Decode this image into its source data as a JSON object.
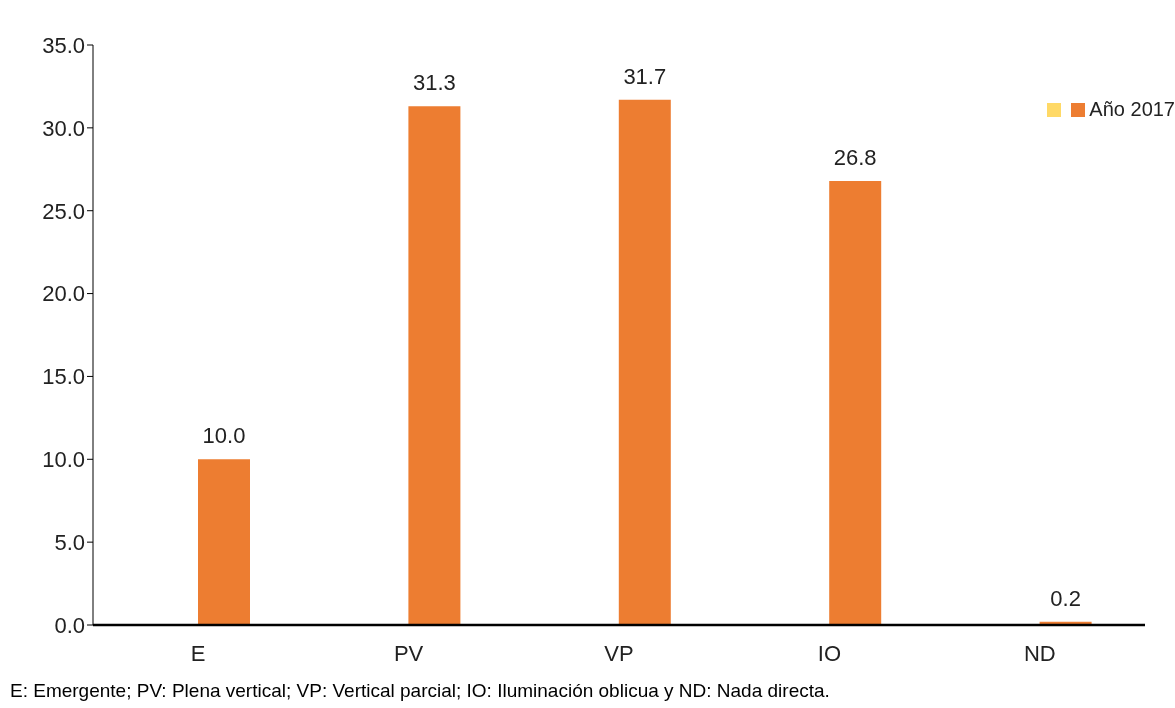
{
  "chart_data": {
    "type": "bar",
    "categories": [
      "E",
      "PV",
      "VP",
      "IO",
      "ND"
    ],
    "series": [
      {
        "color": "#ffd966",
        "values": [
          null,
          null,
          null,
          null,
          null
        ]
      },
      {
        "name": "Año 2017",
        "color": "#ed7d31",
        "values": [
          10.0,
          31.3,
          31.7,
          26.8,
          0.2
        ],
        "value_labels": [
          "10.0",
          "31.3",
          "31.7",
          "26.8",
          "0.2"
        ]
      }
    ],
    "ylim": [
      0,
      35
    ],
    "yticks": [
      {
        "value": 0,
        "label": "0.0"
      },
      {
        "value": 5,
        "label": "5.0"
      },
      {
        "value": 10,
        "label": "10.0"
      },
      {
        "value": 15,
        "label": "15.0"
      },
      {
        "value": 20,
        "label": "20.0"
      },
      {
        "value": 25,
        "label": "25.0"
      },
      {
        "value": 30,
        "label": "30.0"
      },
      {
        "value": 35,
        "label": "35.0"
      }
    ],
    "grid": false,
    "legend": "top right",
    "annotations": [
      "E: Emergente; PV: Plena vertical; VP: Vertical parcial; IO: Iluminación oblicua y ND: Nada directa."
    ]
  }
}
